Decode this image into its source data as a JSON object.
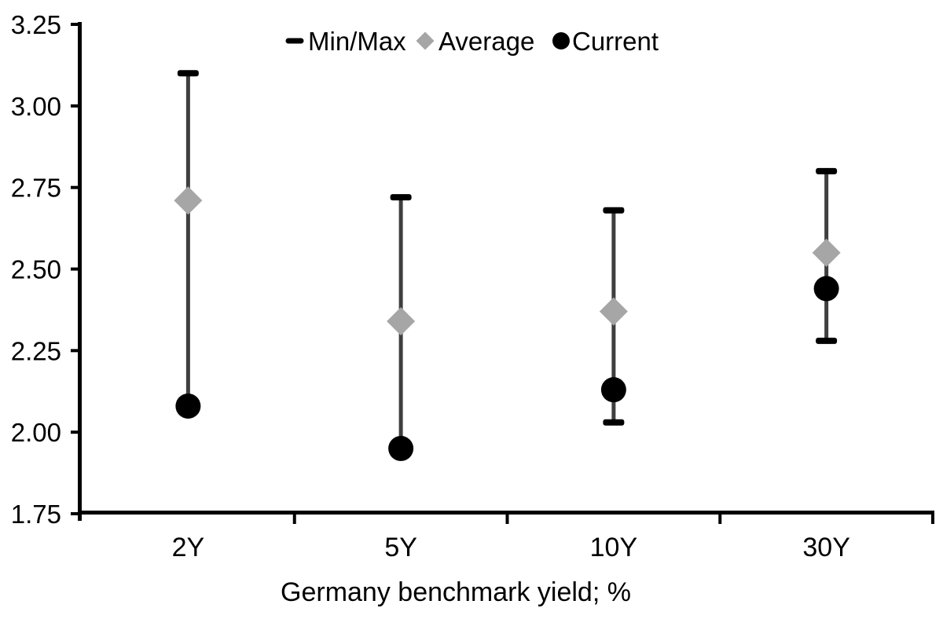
{
  "chart_data": {
    "type": "scatter",
    "subtype": "min-max-range-with-markers",
    "title": "",
    "xlabel": "Germany benchmark yield; %",
    "ylabel": "",
    "categories": [
      "2Y",
      "5Y",
      "10Y",
      "30Y"
    ],
    "series": [
      {
        "name": "Min/Max",
        "marker": "dash",
        "max": [
          3.1,
          2.72,
          2.68,
          2.8
        ],
        "min": [
          2.08,
          1.95,
          2.03,
          2.28
        ],
        "min_cap_visible": [
          false,
          false,
          true,
          true
        ]
      },
      {
        "name": "Average",
        "marker": "diamond",
        "values": [
          2.71,
          2.34,
          2.37,
          2.55
        ]
      },
      {
        "name": "Current",
        "marker": "circle",
        "values": [
          2.08,
          1.95,
          2.13,
          2.44
        ]
      }
    ],
    "ylim": [
      1.75,
      3.25
    ],
    "ytick_step": 0.25,
    "ytick_labels": [
      "3.25",
      "3.00",
      "2.75",
      "2.50",
      "2.25",
      "2.00",
      "1.75"
    ],
    "grid": false,
    "legend_position": "top-center",
    "colors": {
      "range_line": "#3f3f3f",
      "cap": "#000000",
      "average": "#a6a6a6",
      "current": "#000000",
      "axis": "#000000",
      "text": "#000000",
      "background": "#ffffff"
    }
  }
}
